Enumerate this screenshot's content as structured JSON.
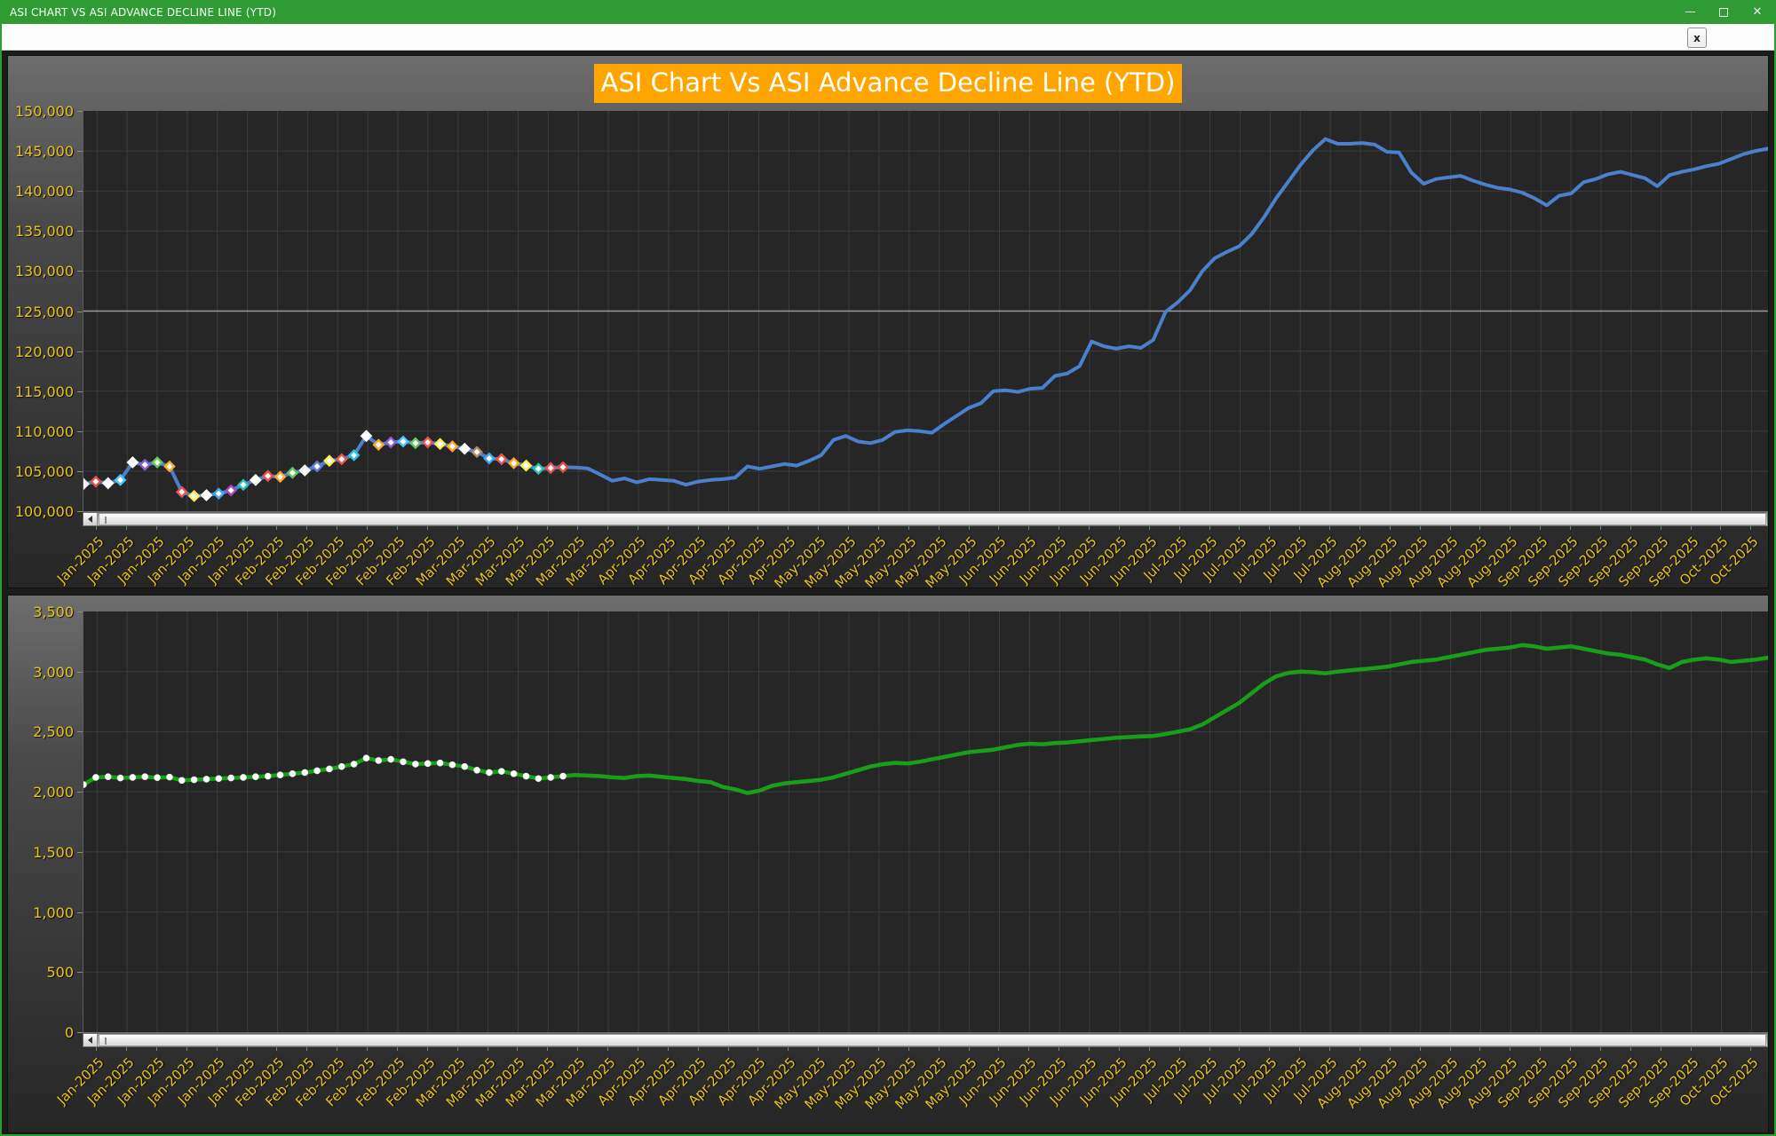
{
  "window": {
    "title": "ASI CHART VS ASI ADVANCE DECLINE LINE (YTD)",
    "titlebar_color": "#2e9c33",
    "controls": {
      "minimize": "minimize",
      "maximize": "maximize",
      "close": "✕"
    }
  },
  "tabstrip": {
    "close_button_label": "x"
  },
  "theme": {
    "axis_label_color": "#e6c31e",
    "plot_background": "#262626",
    "gridline_color": "#3c3c3c",
    "highlight_gridline_color": "#9a9a9a",
    "title_background": "#ffa500",
    "title_text_color": "#ffffff"
  },
  "chart_data": [
    {
      "type": "line",
      "title": "ASI Chart Vs ASI Advance Decline Line (YTD)",
      "ylim": [
        100000,
        150000
      ],
      "ytick_step": 5000,
      "yticks": [
        "150,000",
        "145,000",
        "140,000",
        "135,000",
        "130,000",
        "125,000",
        "120,000",
        "115,000",
        "110,000",
        "105,000",
        "100,000"
      ],
      "highlight_gridline_value": 125000,
      "grid": true,
      "legend_position": "none",
      "x_labels": [
        "Jan-2025",
        "Jan-2025",
        "Jan-2025",
        "Jan-2025",
        "Jan-2025",
        "Jan-2025",
        "Feb-2025",
        "Feb-2025",
        "Feb-2025",
        "Feb-2025",
        "Feb-2025",
        "Feb-2025",
        "Mar-2025",
        "Mar-2025",
        "Mar-2025",
        "Mar-2025",
        "Mar-2025",
        "Mar-2025",
        "Apr-2025",
        "Apr-2025",
        "Apr-2025",
        "Apr-2025",
        "Apr-2025",
        "Apr-2025",
        "May-2025",
        "May-2025",
        "May-2025",
        "May-2025",
        "May-2025",
        "May-2025",
        "Jun-2025",
        "Jun-2025",
        "Jun-2025",
        "Jun-2025",
        "Jun-2025",
        "Jun-2025",
        "Jul-2025",
        "Jul-2025",
        "Jul-2025",
        "Jul-2025",
        "Jul-2025",
        "Jul-2025",
        "Aug-2025",
        "Aug-2025",
        "Aug-2025",
        "Aug-2025",
        "Aug-2025",
        "Aug-2025",
        "Sep-2025",
        "Sep-2025",
        "Sep-2025",
        "Sep-2025",
        "Sep-2025",
        "Sep-2025",
        "Oct-2025",
        "Oct-2025"
      ],
      "series": [
        {
          "name": "ASI",
          "color": "#4a80cc",
          "line_width": 4,
          "marker_shape": "diamond",
          "marker_count": 40,
          "marker_colors": [
            "#f2f2f2",
            "#e05043",
            "#ffffff",
            "#4fc3f7",
            "#ffffff",
            "#8e5fd0",
            "#63c75f",
            "#ffa726",
            "#ef5350",
            "#ffee58",
            "#ffffff",
            "#42a5f5",
            "#ab47bc",
            "#2fc2b5",
            "#ffffff",
            "#ef5350",
            "#ffa726",
            "#63c75f",
            "#f2f2f2",
            "#6a79d6",
            "#ffee58",
            "#ef5350",
            "#26c6da",
            "#ffffff",
            "#ffa726",
            "#8e5fd0",
            "#4fc3f7",
            "#63c75f",
            "#ef5350",
            "#ffee58",
            "#ffa726",
            "#ffffff",
            "#b08968",
            "#42a5f5",
            "#ef5350",
            "#ffa726",
            "#ffee58",
            "#2fc2b5",
            "#ef5350",
            "#e05043"
          ],
          "values": [
            103400,
            103700,
            103500,
            103900,
            106100,
            105800,
            106100,
            105600,
            102400,
            101900,
            102000,
            102200,
            102600,
            103300,
            103900,
            104400,
            104300,
            104800,
            105100,
            105600,
            106300,
            106500,
            107000,
            109400,
            108300,
            108600,
            108700,
            108500,
            108600,
            108400,
            108100,
            107800,
            107400,
            106600,
            106500,
            106000,
            105700,
            105300,
            105400,
            105500,
            105450,
            105350,
            104600,
            103800,
            104100,
            103600,
            104000,
            103900,
            103800,
            103300,
            103700,
            103900,
            104000,
            104200,
            105600,
            105300,
            105600,
            105900,
            105700,
            106300,
            107000,
            108900,
            109400,
            108700,
            108500,
            108900,
            109900,
            110100,
            110000,
            109800,
            110900,
            111900,
            112900,
            113500,
            115000,
            115100,
            114900,
            115300,
            115400,
            116900,
            117200,
            118100,
            121200,
            120600,
            120300,
            120600,
            120400,
            121400,
            124900,
            126100,
            127600,
            130000,
            131600,
            132400,
            133100,
            134600,
            136700,
            139100,
            141200,
            143300,
            145100,
            146500,
            145900,
            145900,
            146000,
            145800,
            144900,
            144800,
            142300,
            140900,
            141500,
            141700,
            141900,
            141300,
            140800,
            140400,
            140200,
            139800,
            139100,
            138200,
            139400,
            139700,
            141100,
            141500,
            142100,
            142400,
            142000,
            141600,
            140600,
            142000,
            142400,
            142700,
            143100,
            143400,
            144000,
            144600,
            145000,
            145300
          ]
        }
      ]
    },
    {
      "type": "line",
      "title": "",
      "ylim": [
        0,
        3500
      ],
      "ytick_step": 500,
      "yticks": [
        "3,500",
        "3,000",
        "2,500",
        "2,000",
        "1,500",
        "1,000",
        "500",
        "0"
      ],
      "highlight_gridline_value": null,
      "grid": true,
      "legend_position": "none",
      "x_labels": [
        "Jan-2025",
        "Jan-2025",
        "Jan-2025",
        "Jan-2025",
        "Jan-2025",
        "Jan-2025",
        "Feb-2025",
        "Feb-2025",
        "Feb-2025",
        "Feb-2025",
        "Feb-2025",
        "Feb-2025",
        "Mar-2025",
        "Mar-2025",
        "Mar-2025",
        "Mar-2025",
        "Mar-2025",
        "Mar-2025",
        "Apr-2025",
        "Apr-2025",
        "Apr-2025",
        "Apr-2025",
        "Apr-2025",
        "Apr-2025",
        "May-2025",
        "May-2025",
        "May-2025",
        "May-2025",
        "May-2025",
        "May-2025",
        "Jun-2025",
        "Jun-2025",
        "Jun-2025",
        "Jun-2025",
        "Jun-2025",
        "Jun-2025",
        "Jul-2025",
        "Jul-2025",
        "Jul-2025",
        "Jul-2025",
        "Jul-2025",
        "Jul-2025",
        "Aug-2025",
        "Aug-2025",
        "Aug-2025",
        "Aug-2025",
        "Aug-2025",
        "Aug-2025",
        "Sep-2025",
        "Sep-2025",
        "Sep-2025",
        "Sep-2025",
        "Sep-2025",
        "Sep-2025",
        "Oct-2025",
        "Oct-2025"
      ],
      "series": [
        {
          "name": "ASI Advance Decline Line",
          "color": "#17a017",
          "line_width": 4.5,
          "marker_shape": "circle",
          "marker_count": 40,
          "marker_colors": [],
          "values": [
            2060,
            2120,
            2125,
            2115,
            2120,
            2125,
            2118,
            2122,
            2095,
            2100,
            2105,
            2110,
            2115,
            2120,
            2125,
            2130,
            2140,
            2150,
            2160,
            2175,
            2190,
            2210,
            2230,
            2280,
            2260,
            2270,
            2250,
            2230,
            2235,
            2240,
            2225,
            2210,
            2180,
            2160,
            2170,
            2150,
            2130,
            2110,
            2120,
            2130,
            2140,
            2135,
            2130,
            2120,
            2115,
            2130,
            2135,
            2125,
            2115,
            2105,
            2090,
            2080,
            2040,
            2020,
            1990,
            2010,
            2050,
            2070,
            2080,
            2090,
            2100,
            2120,
            2150,
            2180,
            2210,
            2230,
            2240,
            2235,
            2250,
            2270,
            2290,
            2310,
            2330,
            2340,
            2350,
            2370,
            2390,
            2400,
            2395,
            2405,
            2410,
            2420,
            2430,
            2440,
            2450,
            2455,
            2460,
            2465,
            2480,
            2500,
            2520,
            2560,
            2620,
            2680,
            2740,
            2820,
            2900,
            2960,
            2990,
            3000,
            2995,
            2985,
            3000,
            3010,
            3020,
            3030,
            3040,
            3060,
            3080,
            3090,
            3100,
            3120,
            3140,
            3160,
            3180,
            3190,
            3200,
            3220,
            3210,
            3190,
            3200,
            3210,
            3190,
            3170,
            3150,
            3140,
            3120,
            3100,
            3060,
            3030,
            3080,
            3100,
            3110,
            3100,
            3080,
            3090,
            3100,
            3115
          ]
        }
      ]
    }
  ]
}
